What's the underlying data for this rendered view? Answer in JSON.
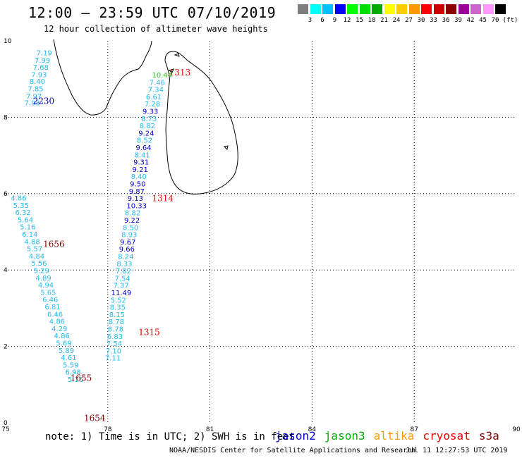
{
  "header": {
    "title": "12:00 – 23:59 UTC 07/10/2019",
    "subtitle": "12 hour collection of altimeter wave heights"
  },
  "colorbar": {
    "unit": "(ft)",
    "colors": [
      "#7f7f7f",
      "#00ffff",
      "#00bfff",
      "#0000ff",
      "#00ff00",
      "#00dd00",
      "#00aa00",
      "#ffff00",
      "#ffcc00",
      "#ff9900",
      "#ff0000",
      "#cc0000",
      "#8b0000",
      "#990099",
      "#cc66cc",
      "#ff99ff",
      "#000000"
    ],
    "labels": [
      "3",
      "6",
      "9",
      "12",
      "15",
      "18",
      "21",
      "24",
      "27",
      "30",
      "33",
      "36",
      "39",
      "42",
      "45",
      "70"
    ]
  },
  "axes": {
    "x_ticks": [
      "75",
      "78",
      "81",
      "84",
      "87",
      "90"
    ],
    "y_ticks": [
      "0",
      "2",
      "4",
      "6",
      "8",
      "10"
    ],
    "xlim": [
      75,
      90
    ],
    "ylim": [
      0,
      10
    ],
    "grid": "dotted"
  },
  "passes": [
    {
      "time": "2230",
      "color": "#0000cc",
      "lon": 75.8,
      "lat": 8.35
    },
    {
      "time": "1313",
      "color": "#ee0000",
      "lon": 79.8,
      "lat": 9.1
    },
    {
      "time": "1314",
      "color": "#ee0000",
      "lon": 79.3,
      "lat": 5.8
    },
    {
      "time": "1656",
      "color": "#880000",
      "lon": 76.1,
      "lat": 4.6
    },
    {
      "time": "1315",
      "color": "#ee0000",
      "lon": 78.9,
      "lat": 2.3
    },
    {
      "time": "1655",
      "color": "#880000",
      "lon": 76.9,
      "lat": 1.1
    },
    {
      "time": "1654",
      "color": "#880000",
      "lon": 77.3,
      "lat": 0.05
    }
  ],
  "wave_heights": [
    {
      "value": "7.19",
      "lon": 75.9,
      "lat": 9.62,
      "color": "#22bbee"
    },
    {
      "value": "7.99",
      "lon": 75.85,
      "lat": 9.43,
      "color": "#22bbee"
    },
    {
      "value": "7.68",
      "lon": 75.8,
      "lat": 9.24,
      "color": "#22bbee"
    },
    {
      "value": "7.93",
      "lon": 75.75,
      "lat": 9.05,
      "color": "#22bbee"
    },
    {
      "value": "8.40",
      "lon": 75.7,
      "lat": 8.87,
      "color": "#22bbee"
    },
    {
      "value": "7.85",
      "lon": 75.65,
      "lat": 8.68,
      "color": "#22bbee"
    },
    {
      "value": "7.97",
      "lon": 75.6,
      "lat": 8.49,
      "color": "#22bbee"
    },
    {
      "value": "7.93",
      "lon": 75.55,
      "lat": 8.31,
      "color": "#22bbee"
    },
    {
      "value": "10.44",
      "lon": 79.3,
      "lat": 9.04,
      "color": "#22cc22"
    },
    {
      "value": "7.46",
      "lon": 79.22,
      "lat": 8.85,
      "color": "#22bbee"
    },
    {
      "value": "7.34",
      "lon": 79.18,
      "lat": 8.66,
      "color": "#22bbee"
    },
    {
      "value": "6.61",
      "lon": 79.12,
      "lat": 8.47,
      "color": "#22bbee"
    },
    {
      "value": "7.28",
      "lon": 79.08,
      "lat": 8.28,
      "color": "#22bbee"
    },
    {
      "value": "9.33",
      "lon": 79.02,
      "lat": 8.09,
      "color": "#0000cc"
    },
    {
      "value": "8.73",
      "lon": 78.98,
      "lat": 7.9,
      "color": "#22bbee"
    },
    {
      "value": "8.82",
      "lon": 78.93,
      "lat": 7.71,
      "color": "#22bbee"
    },
    {
      "value": "9.24",
      "lon": 78.9,
      "lat": 7.52,
      "color": "#0000cc"
    },
    {
      "value": "8.52",
      "lon": 78.85,
      "lat": 7.33,
      "color": "#22bbee"
    },
    {
      "value": "9.64",
      "lon": 78.82,
      "lat": 7.14,
      "color": "#0000cc"
    },
    {
      "value": "8.41",
      "lon": 78.78,
      "lat": 6.95,
      "color": "#22bbee"
    },
    {
      "value": "9.31",
      "lon": 78.75,
      "lat": 6.76,
      "color": "#0000cc"
    },
    {
      "value": "9.21",
      "lon": 78.72,
      "lat": 6.57,
      "color": "#0000cc"
    },
    {
      "value": "8.40",
      "lon": 78.68,
      "lat": 6.38,
      "color": "#22bbee"
    },
    {
      "value": "9.50",
      "lon": 78.65,
      "lat": 6.19,
      "color": "#0000cc"
    },
    {
      "value": "9.87",
      "lon": 78.62,
      "lat": 6.0,
      "color": "#0000cc"
    },
    {
      "value": "9.13",
      "lon": 78.58,
      "lat": 5.81,
      "color": "#0000cc"
    },
    {
      "value": "10.33",
      "lon": 78.55,
      "lat": 5.62,
      "color": "#0000cc"
    },
    {
      "value": "8.82",
      "lon": 78.5,
      "lat": 5.43,
      "color": "#22bbee"
    },
    {
      "value": "9.22",
      "lon": 78.48,
      "lat": 5.24,
      "color": "#0000cc"
    },
    {
      "value": "8.50",
      "lon": 78.44,
      "lat": 5.05,
      "color": "#22bbee"
    },
    {
      "value": "8.93",
      "lon": 78.4,
      "lat": 4.86,
      "color": "#22bbee"
    },
    {
      "value": "9.67",
      "lon": 78.36,
      "lat": 4.67,
      "color": "#0000cc"
    },
    {
      "value": "9.66",
      "lon": 78.33,
      "lat": 4.48,
      "color": "#0000cc"
    },
    {
      "value": "8.24",
      "lon": 78.3,
      "lat": 4.29,
      "color": "#22bbee"
    },
    {
      "value": "8.33",
      "lon": 78.26,
      "lat": 4.1,
      "color": "#22bbee"
    },
    {
      "value": "7.82",
      "lon": 78.23,
      "lat": 3.91,
      "color": "#22bbee"
    },
    {
      "value": "7.54",
      "lon": 78.2,
      "lat": 3.72,
      "color": "#22bbee"
    },
    {
      "value": "7.37",
      "lon": 78.16,
      "lat": 3.53,
      "color": "#22bbee"
    },
    {
      "value": "11.49",
      "lon": 78.1,
      "lat": 3.34,
      "color": "#0000cc"
    },
    {
      "value": "5.52",
      "lon": 78.08,
      "lat": 3.15,
      "color": "#22bbee"
    },
    {
      "value": "8.35",
      "lon": 78.06,
      "lat": 2.96,
      "color": "#22bbee"
    },
    {
      "value": "8.15",
      "lon": 78.04,
      "lat": 2.77,
      "color": "#22bbee"
    },
    {
      "value": "8.78",
      "lon": 78.02,
      "lat": 2.58,
      "color": "#22bbee"
    },
    {
      "value": "8.78",
      "lon": 78.0,
      "lat": 2.39,
      "color": "#22bbee"
    },
    {
      "value": "6.83",
      "lon": 77.98,
      "lat": 2.2,
      "color": "#22bbee"
    },
    {
      "value": "7.54",
      "lon": 77.96,
      "lat": 2.01,
      "color": "#22bbee"
    },
    {
      "value": "7.10",
      "lon": 77.94,
      "lat": 1.82,
      "color": "#22bbee"
    },
    {
      "value": "7.11",
      "lon": 77.92,
      "lat": 1.63,
      "color": "#22bbee"
    },
    {
      "value": "4.86",
      "lon": 75.15,
      "lat": 5.82,
      "color": "#22bbee"
    },
    {
      "value": "5.35",
      "lon": 75.22,
      "lat": 5.63,
      "color": "#22bbee"
    },
    {
      "value": "6.32",
      "lon": 75.28,
      "lat": 5.44,
      "color": "#22bbee"
    },
    {
      "value": "5.64",
      "lon": 75.35,
      "lat": 5.25,
      "color": "#22bbee"
    },
    {
      "value": "5.16",
      "lon": 75.42,
      "lat": 5.06,
      "color": "#22bbee"
    },
    {
      "value": "6.14",
      "lon": 75.48,
      "lat": 4.87,
      "color": "#22bbee"
    },
    {
      "value": "4.88",
      "lon": 75.55,
      "lat": 4.68,
      "color": "#22bbee"
    },
    {
      "value": "5.57",
      "lon": 75.62,
      "lat": 4.49,
      "color": "#22bbee"
    },
    {
      "value": "4.84",
      "lon": 75.68,
      "lat": 4.3,
      "color": "#22bbee"
    },
    {
      "value": "5.56",
      "lon": 75.75,
      "lat": 4.11,
      "color": "#22bbee"
    },
    {
      "value": "5.29",
      "lon": 75.82,
      "lat": 3.92,
      "color": "#22bbee"
    },
    {
      "value": "4.89",
      "lon": 75.88,
      "lat": 3.73,
      "color": "#22bbee"
    },
    {
      "value": "4.94",
      "lon": 75.95,
      "lat": 3.54,
      "color": "#22bbee"
    },
    {
      "value": "5.65",
      "lon": 76.02,
      "lat": 3.35,
      "color": "#22bbee"
    },
    {
      "value": "6.46",
      "lon": 76.08,
      "lat": 3.16,
      "color": "#22bbee"
    },
    {
      "value": "6.81",
      "lon": 76.15,
      "lat": 2.97,
      "color": "#22bbee"
    },
    {
      "value": "6.46",
      "lon": 76.22,
      "lat": 2.78,
      "color": "#22bbee"
    },
    {
      "value": "4.86",
      "lon": 76.28,
      "lat": 2.59,
      "color": "#22bbee"
    },
    {
      "value": "4.29",
      "lon": 76.35,
      "lat": 2.4,
      "color": "#22bbee"
    },
    {
      "value": "4.86",
      "lon": 76.42,
      "lat": 2.21,
      "color": "#22bbee"
    },
    {
      "value": "5.69",
      "lon": 76.48,
      "lat": 2.02,
      "color": "#22bbee"
    },
    {
      "value": "5.89",
      "lon": 76.55,
      "lat": 1.83,
      "color": "#22bbee"
    },
    {
      "value": "4.61",
      "lon": 76.62,
      "lat": 1.64,
      "color": "#22bbee"
    },
    {
      "value": "5.59",
      "lon": 76.68,
      "lat": 1.45,
      "color": "#22bbee"
    },
    {
      "value": "6.98",
      "lon": 76.75,
      "lat": 1.26,
      "color": "#22bbee"
    },
    {
      "value": "5.16",
      "lon": 76.82,
      "lat": 1.07,
      "color": "#22bbee"
    }
  ],
  "satellites": [
    {
      "name": "jason2",
      "color": "#0000cc"
    },
    {
      "name": "jason3",
      "color": "#00aa00"
    },
    {
      "name": "altika",
      "color": "#ff9900"
    },
    {
      "name": "cryosat",
      "color": "#ee0000"
    },
    {
      "name": "s3a",
      "color": "#880000"
    }
  ],
  "footer": {
    "note": "note: 1) Time is in UTC; 2) SWH is in feet",
    "credit": "NOAA/NESDIS Center for Satellite Applications and Research",
    "timestamp": "Jul 11 12:27:53 UTC 2019"
  }
}
